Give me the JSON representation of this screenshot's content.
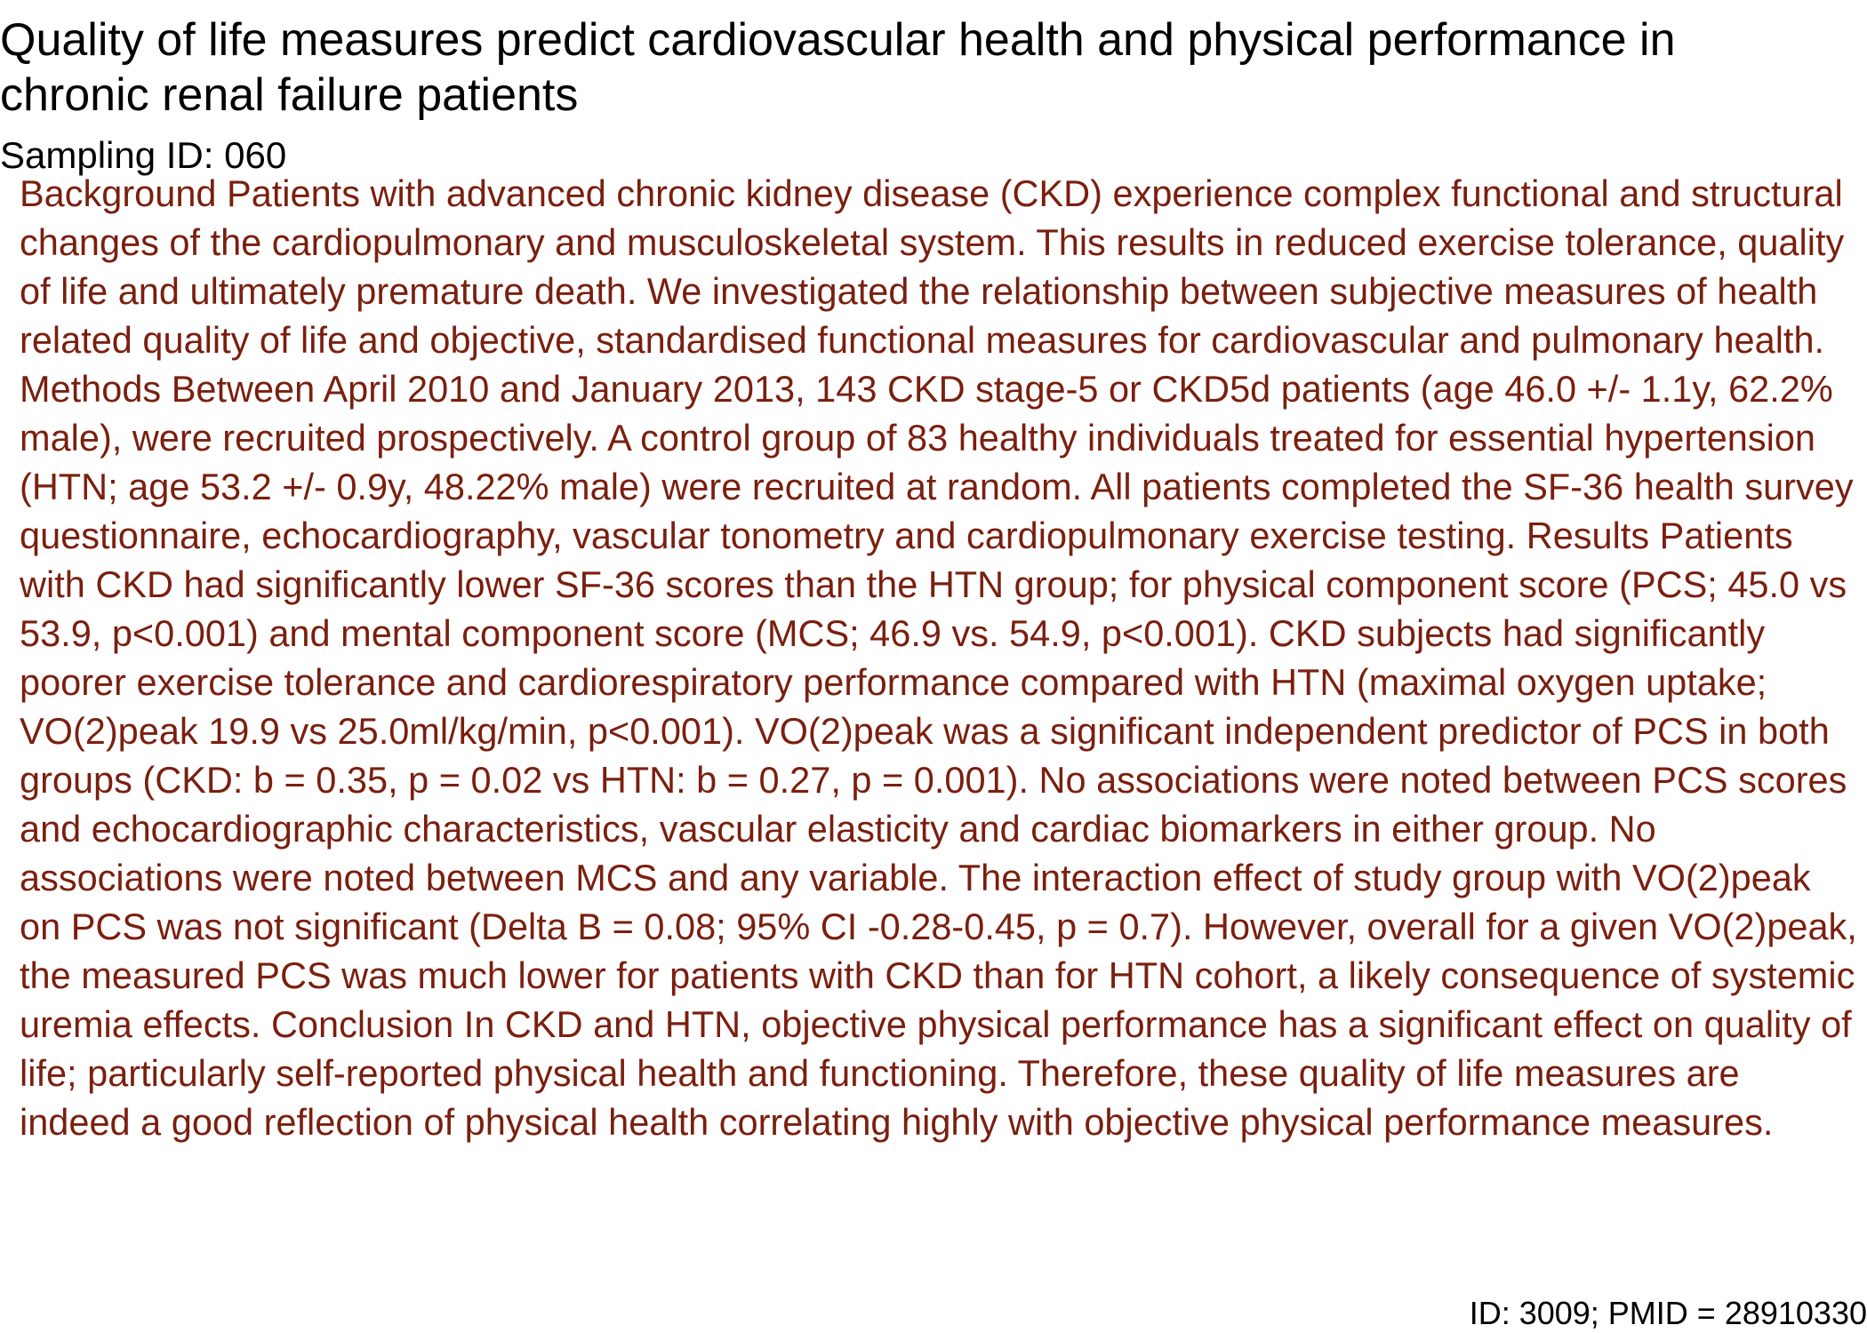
{
  "document": {
    "title": "Quality of life measures predict cardiovascular health and physical performance in chronic renal failure patients",
    "sampling_id": "Sampling ID: 060",
    "abstract": "Background Patients with advanced chronic kidney disease (CKD) experience complex functional and structural changes of the cardiopulmonary and musculoskeletal system. This results in reduced exercise tolerance, quality of life and ultimately premature death. We investigated the relationship between subjective measures of health related quality of life and objective, standardised functional measures for cardiovascular and pulmonary health. Methods Between April 2010 and January 2013, 143 CKD stage-5 or CKD5d patients (age 46.0 +/- 1.1y, 62.2% male), were recruited prospectively. A control group of 83 healthy individuals treated for essential hypertension (HTN; age 53.2 +/- 0.9y, 48.22% male) were recruited at random. All patients completed the SF-36 health survey questionnaire, echocardiography, vascular tonometry and cardiopulmonary exercise testing. Results Patients with CKD had significantly lower SF-36 scores than the HTN group; for physical component score (PCS; 45.0 vs 53.9, p<0.001) and mental component score (MCS; 46.9 vs. 54.9, p<0.001). CKD subjects had significantly poorer exercise tolerance and cardiorespiratory performance compared with HTN (maximal oxygen uptake; VO(2)peak 19.9 vs 25.0ml/kg/min, p<0.001). VO(2)peak was a significant independent predictor of PCS in both groups (CKD: b = 0.35, p = 0.02 vs HTN: b = 0.27, p = 0.001). No associations were noted between PCS scores and echocardiographic characteristics, vascular elasticity and cardiac biomarkers in either group. No associations were noted between MCS and any variable. The interaction effect of study group with VO(2)peak on PCS was not significant (Delta B = 0.08; 95% CI -0.28-0.45, p = 0.7). However, overall for a given VO(2)peak, the measured PCS was much lower for patients with CKD than for HTN cohort, a likely consequence of systemic uremia effects. Conclusion In CKD and HTN, objective physical performance has a significant effect on quality of life; particularly self-reported physical health and functioning. Therefore, these quality of life measures are indeed a good reflection of physical health correlating highly with objective physical performance measures.",
    "footer_id": "ID: 3009; PMID = 28910330"
  },
  "colors": {
    "title_text": "#000000",
    "abstract_text": "#7a1f0f",
    "background": "#ffffff"
  }
}
